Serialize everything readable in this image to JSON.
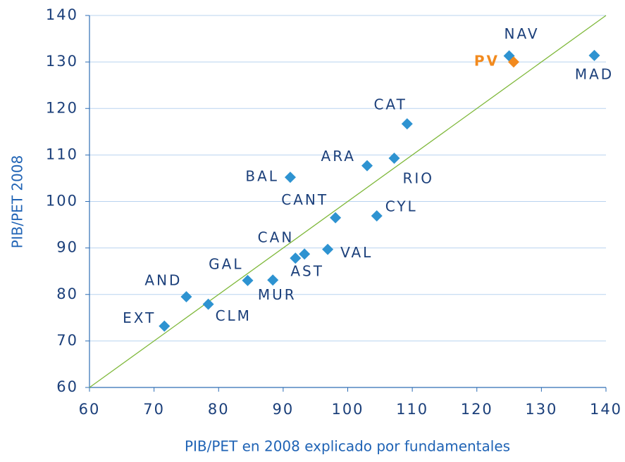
{
  "chart_data": {
    "type": "scatter",
    "x_label": "PIB/PET en 2008 explicado por fundamentales",
    "y_label": "PIB/PET 2008",
    "point_labels": [
      "EXT",
      "AND",
      "CLM",
      "GAL",
      "MUR",
      "CAN",
      "AST",
      "VAL",
      "CANT",
      "CYL",
      "BAL",
      "ARA",
      "RIO",
      "CAT",
      "NAV",
      "PV",
      "MAD"
    ],
    "x": [
      71.6,
      75.0,
      78.4,
      84.5,
      88.4,
      91.9,
      93.3,
      96.9,
      98.1,
      104.5,
      91.1,
      103.0,
      107.2,
      109.2,
      125.0,
      125.7,
      138.2
    ],
    "y": [
      73.2,
      79.5,
      77.9,
      83.0,
      83.1,
      87.8,
      88.7,
      89.7,
      96.5,
      96.9,
      105.2,
      107.7,
      109.3,
      116.7,
      131.3,
      130.0,
      131.4
    ],
    "colors": [
      "#2e93d1",
      "#2e93d1",
      "#2e93d1",
      "#2e93d1",
      "#2e93d1",
      "#2e93d1",
      "#2e93d1",
      "#2e93d1",
      "#2e93d1",
      "#2e93d1",
      "#2e93d1",
      "#2e93d1",
      "#2e93d1",
      "#2e93d1",
      "#2e93d1",
      "#f28a1e",
      "#2e93d1"
    ],
    "xlim": [
      60,
      140
    ],
    "xticks": [
      60,
      70,
      80,
      90,
      100,
      110,
      120,
      130,
      140
    ],
    "ylim": [
      60,
      140
    ],
    "yticks": [
      60,
      70,
      80,
      90,
      100,
      110,
      120,
      130,
      140
    ],
    "grid": true,
    "identity_line": true,
    "identity_line_color": "#7fb83a"
  }
}
